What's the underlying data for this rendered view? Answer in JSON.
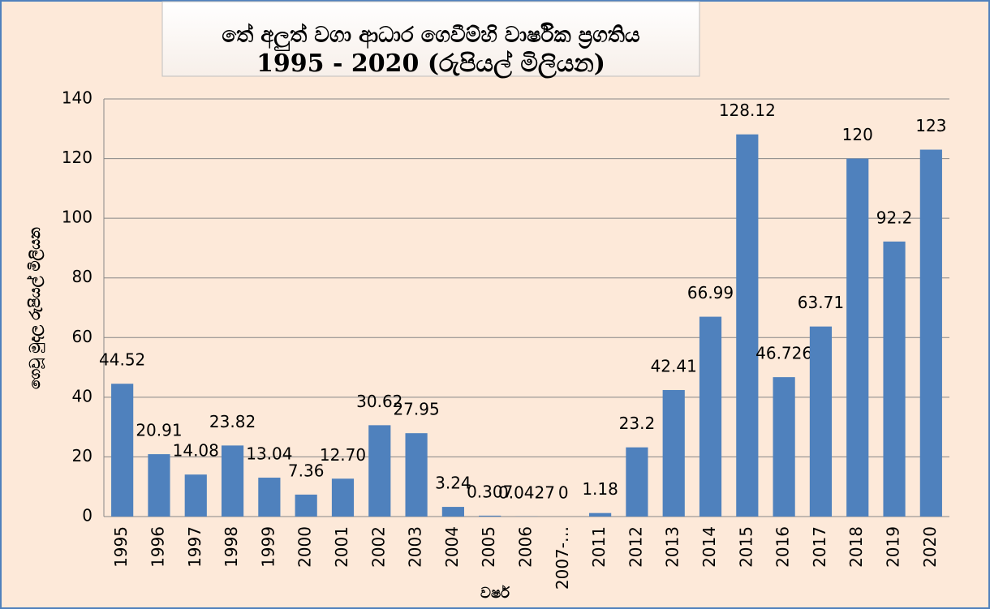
{
  "chart_data": {
    "type": "bar",
    "title": "තේ අලුත් වගා ආධාර ගෙවීම්හි  වාර්ෂික ප්‍රගතිය",
    "subtitle": "1995 - 2020 (රුපියල් මිලියන)",
    "x_label": "වර්ෂ",
    "y_label": "ගෙවූ මුදල රුපියල් මිලියන",
    "categories": [
      "1995",
      "1996",
      "1997",
      "1998",
      "1999",
      "2000",
      "2001",
      "2002",
      "2003",
      "2004",
      "2005",
      "2006",
      "2007-…",
      "2011",
      "2012",
      "2013",
      "2014",
      "2015",
      "2016",
      "2017",
      "2018",
      "2019",
      "2020"
    ],
    "values": [
      44.52,
      20.91,
      14.08,
      23.82,
      13.04,
      7.36,
      12.7,
      30.62,
      27.95,
      3.24,
      0.307,
      0.0427,
      0,
      1.18,
      23.2,
      42.41,
      66.99,
      128.12,
      46.726,
      63.71,
      120,
      92.2,
      123
    ],
    "value_labels": [
      "44.52",
      "20.91",
      "14.08",
      "23.82",
      "13.04",
      "7.36",
      "12.70",
      "30.62",
      "27.95",
      "3.24",
      "0.307",
      "0.0427",
      "0",
      "1.18",
      "23.2",
      "42.41",
      "66.99",
      "128.12",
      "46.726",
      "63.71",
      "120",
      "92.2",
      "123"
    ],
    "color": "#4f81bd",
    "ylim": [
      0,
      140
    ],
    "yticks": [
      0,
      20,
      40,
      60,
      80,
      100,
      120,
      140
    ],
    "grid": true
  }
}
